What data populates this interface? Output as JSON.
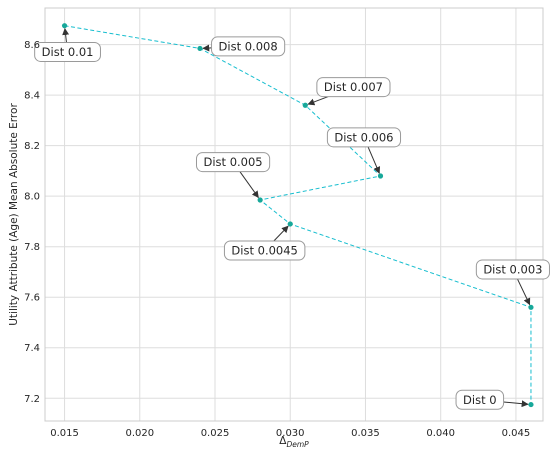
{
  "chart_data": {
    "type": "line",
    "xlabel": "Δ",
    "xlabel_subscript": "DemP",
    "ylabel": "Utility Attribute (Age) Mean Absolute Error",
    "xlim": [
      0.0137,
      0.0468
    ],
    "ylim": [
      7.11,
      8.745
    ],
    "xticks": [
      "0.015",
      "0.020",
      "0.025",
      "0.030",
      "0.035",
      "0.040",
      "0.045"
    ],
    "xtick_values": [
      0.015,
      0.02,
      0.025,
      0.03,
      0.035,
      0.04,
      0.045
    ],
    "yticks": [
      "7.2",
      "7.4",
      "7.6",
      "7.8",
      "8.0",
      "8.2",
      "8.4",
      "8.6"
    ],
    "ytick_values": [
      7.2,
      7.4,
      7.6,
      7.8,
      8.0,
      8.2,
      8.4,
      8.6
    ],
    "grid": true,
    "line_style": "dashed",
    "series_color": "#17becf",
    "marker_color": "#17a89a",
    "points": [
      {
        "label": "Dist 0.01",
        "x": 0.015,
        "y": 8.675
      },
      {
        "label": "Dist 0.008",
        "x": 0.024,
        "y": 8.585
      },
      {
        "label": "Dist 0.007",
        "x": 0.031,
        "y": 8.36
      },
      {
        "label": "Dist 0.006",
        "x": 0.036,
        "y": 8.08
      },
      {
        "label": "Dist 0.005",
        "x": 0.028,
        "y": 7.985
      },
      {
        "label": "Dist 0.0045",
        "x": 0.03,
        "y": 7.89
      },
      {
        "label": "Dist 0.003",
        "x": 0.046,
        "y": 7.56
      },
      {
        "label": "Dist 0",
        "x": 0.046,
        "y": 7.175
      }
    ],
    "annotations": [
      {
        "text": "Dist 0.01",
        "text_x": 0.0152,
        "text_y": 8.571
      },
      {
        "text": "Dist 0.008",
        "text_x": 0.0272,
        "text_y": 8.593
      },
      {
        "text": "Dist 0.007",
        "text_x": 0.0342,
        "text_y": 8.432
      },
      {
        "text": "Dist 0.006",
        "text_x": 0.0349,
        "text_y": 8.233
      },
      {
        "text": "Dist 0.005",
        "text_x": 0.0262,
        "text_y": 8.135
      },
      {
        "text": "Dist 0.0045",
        "text_x": 0.0283,
        "text_y": 7.785
      },
      {
        "text": "Dist 0.003",
        "text_x": 0.0448,
        "text_y": 7.71
      },
      {
        "text": "Dist 0",
        "text_x": 0.0426,
        "text_y": 7.194
      }
    ]
  }
}
